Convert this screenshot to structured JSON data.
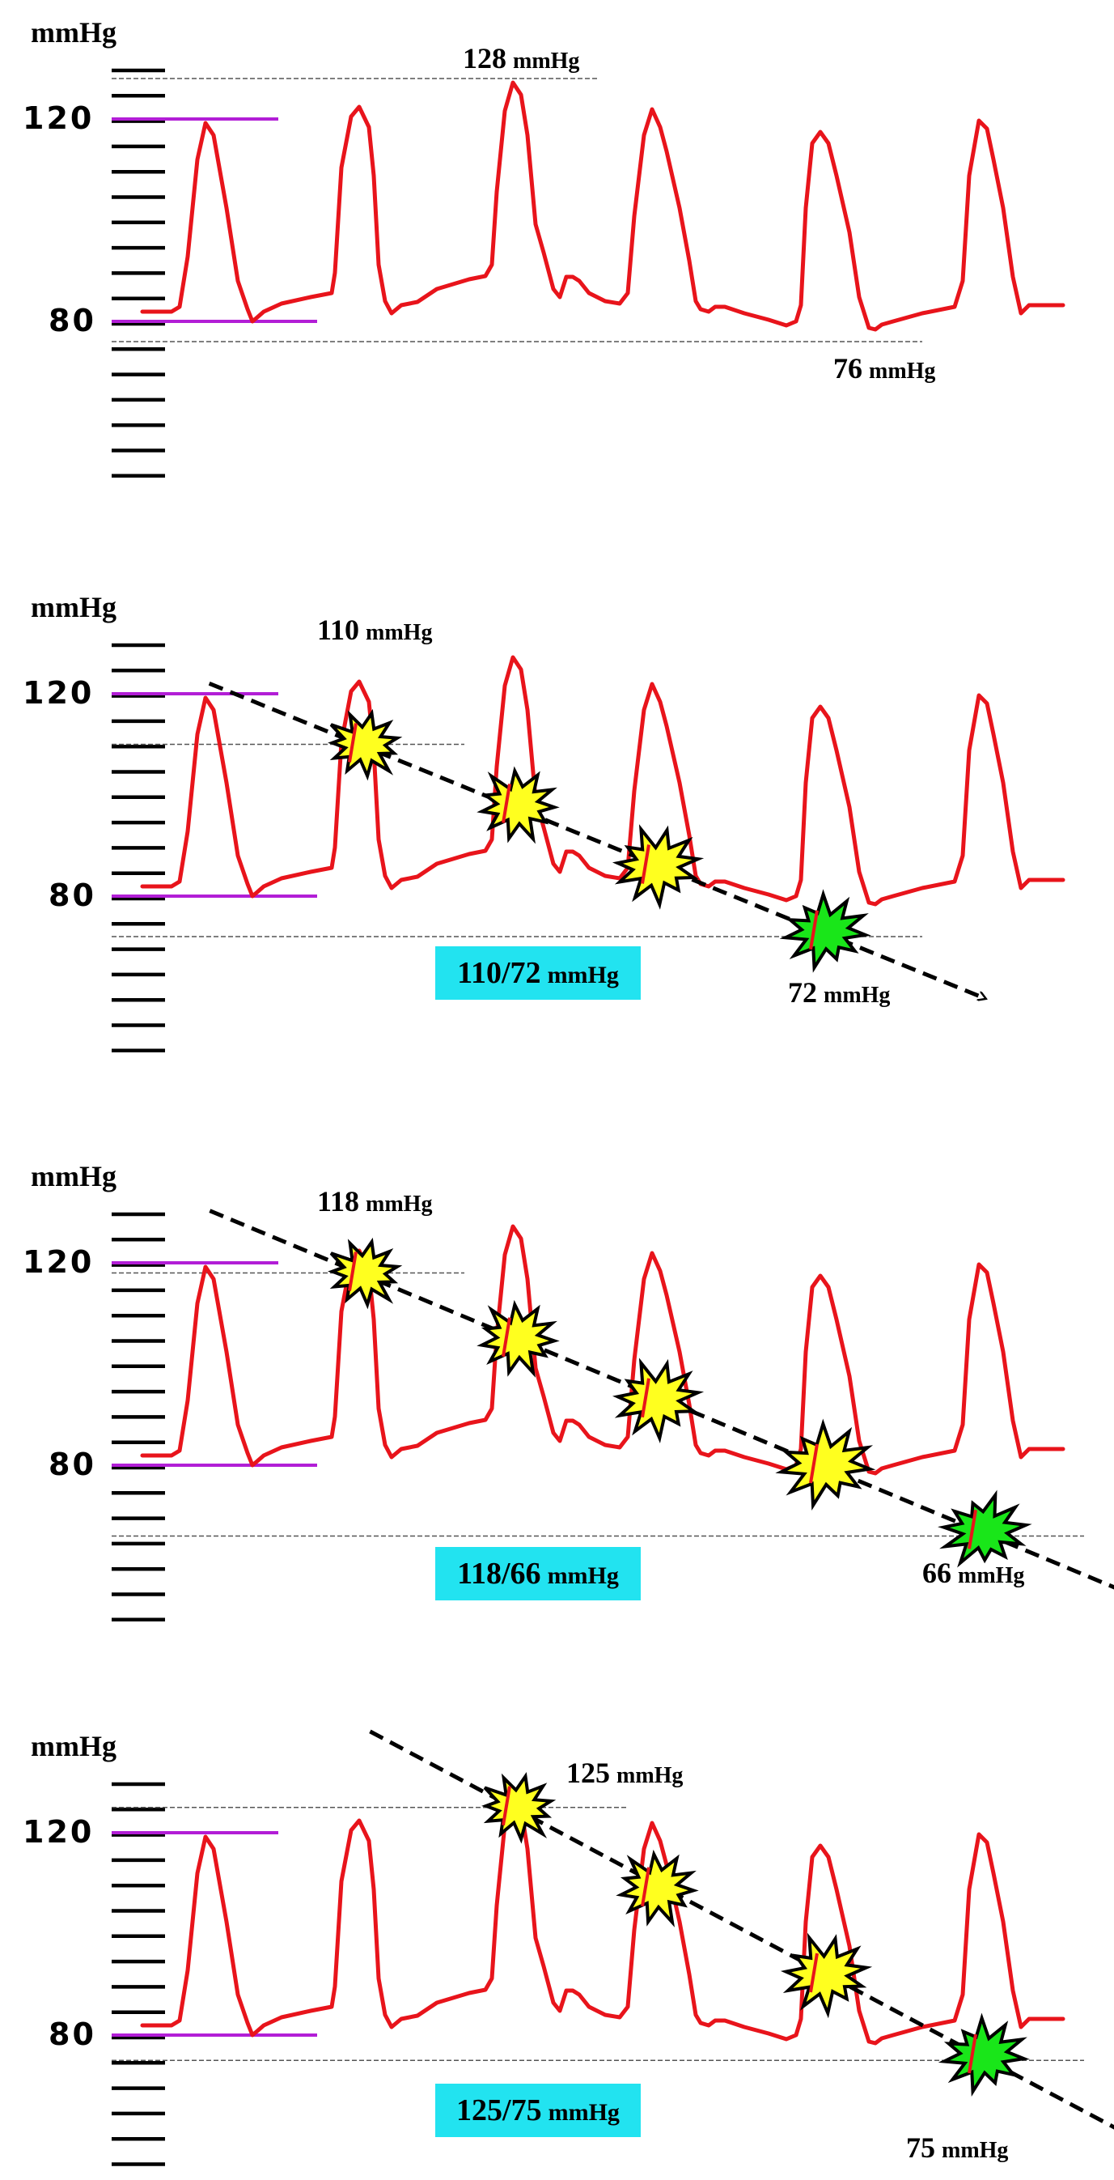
{
  "colors": {
    "waveform": "#e8141b",
    "reference_line": "#b21ed6",
    "burst_active": "#ffff1f",
    "burst_stopped": "#19e619",
    "result_box": "#22e3f0",
    "arrow": "#000000"
  },
  "icons": {
    "burst_active": "yellow-starburst-icon",
    "burst_stopped": "green-starburst-icon"
  },
  "panels": [
    {
      "unit_label": "mmHg",
      "tick_upper": "120",
      "tick_lower": "80",
      "upper_guide_label_value": "128",
      "upper_guide_label_unit": "mmHg",
      "lower_guide_label_value": "76",
      "lower_guide_label_unit": "mmHg",
      "result_value": "",
      "result_unit": "",
      "upper_guide_mmHg": 128,
      "lower_guide_mmHg": 76,
      "bursts": []
    },
    {
      "unit_label": "mmHg",
      "tick_upper": "120",
      "tick_lower": "80",
      "upper_guide_label_value": "110",
      "upper_guide_label_unit": "mmHg",
      "lower_guide_label_value": "72",
      "lower_guide_label_unit": "mmHg",
      "result_value": "110/72",
      "result_unit": "mmHg",
      "upper_guide_mmHg": 110,
      "lower_guide_mmHg": 72,
      "bursts": [
        {
          "beat": 2,
          "mmHg": 110,
          "type": "active"
        },
        {
          "beat": 3,
          "mmHg": 98,
          "type": "active"
        },
        {
          "beat": 4,
          "mmHg": 86,
          "type": "active"
        },
        {
          "beat": 5,
          "mmHg": 73,
          "type": "stopped"
        }
      ]
    },
    {
      "unit_label": "mmHg",
      "tick_upper": "120",
      "tick_lower": "80",
      "upper_guide_label_value": "118",
      "upper_guide_label_unit": "mmHg",
      "lower_guide_label_value": "66",
      "lower_guide_label_unit": "mmHg",
      "result_value": "118/66",
      "result_unit": "mmHg",
      "upper_guide_mmHg": 118,
      "lower_guide_mmHg": 66,
      "bursts": [
        {
          "beat": 2,
          "mmHg": 118,
          "type": "active"
        },
        {
          "beat": 3,
          "mmHg": 105,
          "type": "active"
        },
        {
          "beat": 4,
          "mmHg": 93,
          "type": "active"
        },
        {
          "beat": 5,
          "mmHg": 80,
          "type": "active"
        },
        {
          "beat": 6,
          "mmHg": 67,
          "type": "stopped"
        }
      ]
    },
    {
      "unit_label": "mmHg",
      "tick_upper": "120",
      "tick_lower": "80",
      "upper_guide_label_value": "125",
      "upper_guide_label_unit": "mmHg",
      "lower_guide_label_value": "75",
      "lower_guide_label_unit": "mmHg",
      "result_value": "125/75",
      "result_unit": "mmHg",
      "upper_guide_mmHg": 125,
      "lower_guide_mmHg": 75,
      "bursts": [
        {
          "beat": 3,
          "mmHg": 125,
          "type": "active"
        },
        {
          "beat": 4,
          "mmHg": 109,
          "type": "active"
        },
        {
          "beat": 5,
          "mmHg": 92,
          "type": "active"
        },
        {
          "beat": 6,
          "mmHg": 76,
          "type": "stopped"
        }
      ]
    }
  ]
}
